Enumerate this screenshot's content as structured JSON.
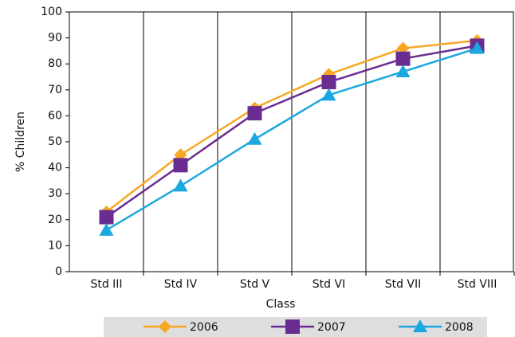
{
  "chart_data": {
    "type": "line",
    "xlabel": "Class",
    "ylabel": "% Children",
    "categories": [
      "Std III",
      "Std IV",
      "Std V",
      "Std VI",
      "Std VII",
      "Std VIII"
    ],
    "series": [
      {
        "name": "2006",
        "color": "#f7a823",
        "marker": "diamond",
        "values": [
          23,
          45,
          63,
          76,
          86,
          89
        ]
      },
      {
        "name": "2007",
        "color": "#6b2c91",
        "marker": "square",
        "values": [
          21,
          41,
          61,
          73,
          82,
          87
        ]
      },
      {
        "name": "2008",
        "color": "#1ba8e0",
        "marker": "triangle",
        "values": [
          16,
          33,
          51,
          68,
          77,
          86
        ]
      }
    ],
    "ylim": [
      0,
      100
    ],
    "yticks": [
      0,
      10,
      20,
      30,
      40,
      50,
      60,
      70,
      80,
      90,
      100
    ],
    "grid": "x",
    "legend": "bottom"
  }
}
